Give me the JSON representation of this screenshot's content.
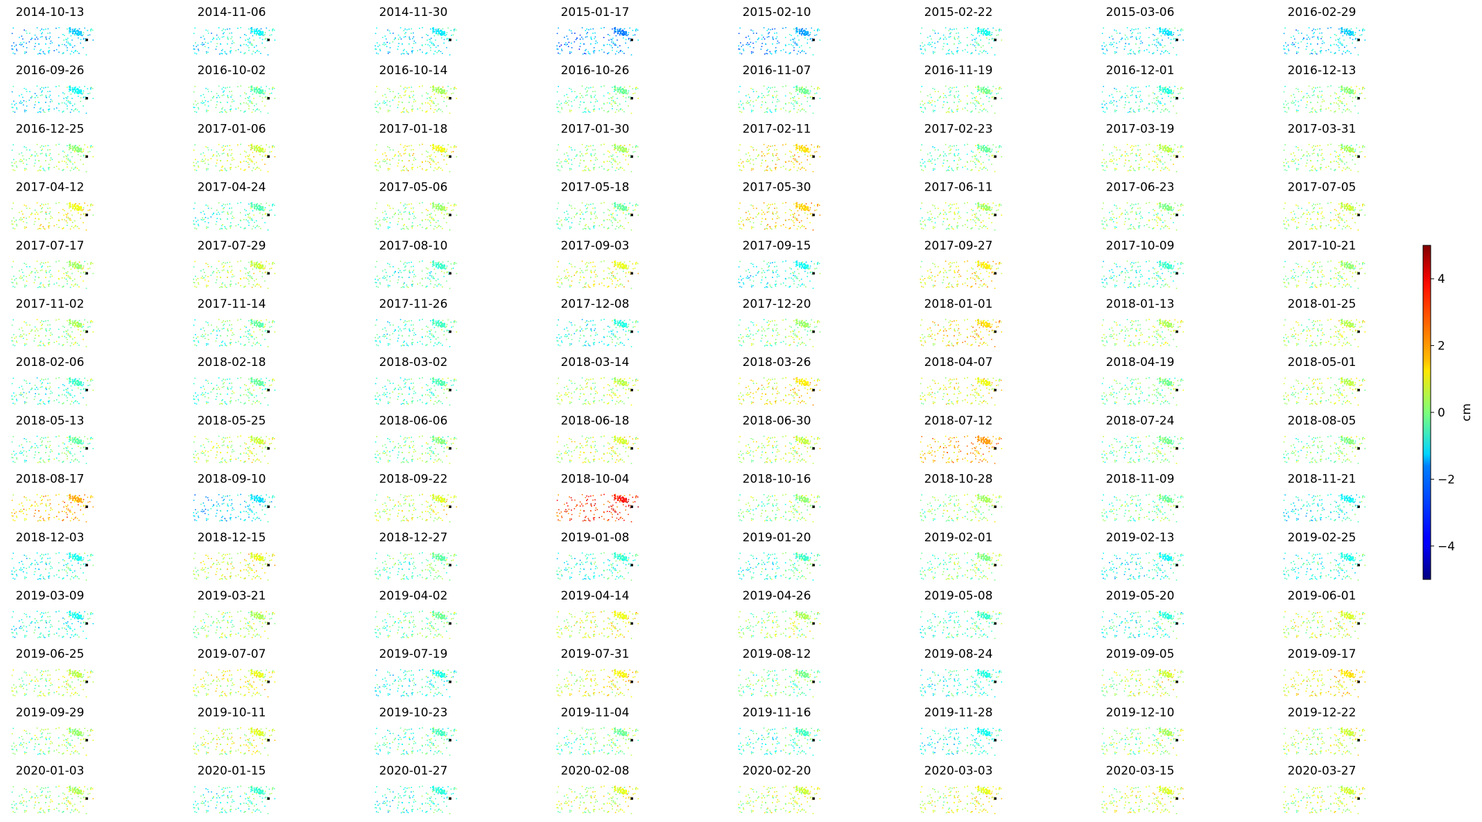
{
  "chart_data": {
    "type": "scatter",
    "layout": "small-multiples",
    "colormap": "jet",
    "panels": [
      {
        "title": "2014-10-13",
        "mean": -1.6
      },
      {
        "title": "2014-11-06",
        "mean": -1.2
      },
      {
        "title": "2014-11-30",
        "mean": -1.3
      },
      {
        "title": "2015-01-17",
        "mean": -2.2
      },
      {
        "title": "2015-02-10",
        "mean": -1.9
      },
      {
        "title": "2015-02-22",
        "mean": -1.0
      },
      {
        "title": "2015-03-06",
        "mean": -1.3
      },
      {
        "title": "2016-02-29",
        "mean": -1.5
      },
      {
        "title": "2016-09-26",
        "mean": -1.1
      },
      {
        "title": "2016-10-02",
        "mean": -0.4
      },
      {
        "title": "2016-10-14",
        "mean": 0.3
      },
      {
        "title": "2016-10-26",
        "mean": -0.2
      },
      {
        "title": "2016-11-07",
        "mean": -0.1
      },
      {
        "title": "2016-11-19",
        "mean": -0.1
      },
      {
        "title": "2016-12-01",
        "mean": -0.7
      },
      {
        "title": "2016-12-13",
        "mean": 0.0
      },
      {
        "title": "2016-12-25",
        "mean": 0.1
      },
      {
        "title": "2017-01-06",
        "mean": 0.6
      },
      {
        "title": "2017-01-18",
        "mean": 1.0
      },
      {
        "title": "2017-01-30",
        "mean": 0.3
      },
      {
        "title": "2017-02-11",
        "mean": 1.4
      },
      {
        "title": "2017-02-23",
        "mean": -0.2
      },
      {
        "title": "2017-03-19",
        "mean": 0.5
      },
      {
        "title": "2017-03-31",
        "mean": 0.3
      },
      {
        "title": "2017-04-12",
        "mean": 0.9
      },
      {
        "title": "2017-04-24",
        "mean": -0.4
      },
      {
        "title": "2017-05-06",
        "mean": 0.2
      },
      {
        "title": "2017-05-18",
        "mean": -0.2
      },
      {
        "title": "2017-05-30",
        "mean": 1.5
      },
      {
        "title": "2017-06-11",
        "mean": 0.3
      },
      {
        "title": "2017-06-23",
        "mean": 0.0
      },
      {
        "title": "2017-07-05",
        "mean": 0.6
      },
      {
        "title": "2017-07-17",
        "mean": 0.2
      },
      {
        "title": "2017-07-29",
        "mean": 0.6
      },
      {
        "title": "2017-08-10",
        "mean": -0.6
      },
      {
        "title": "2017-09-03",
        "mean": 0.9
      },
      {
        "title": "2017-09-15",
        "mean": -1.0
      },
      {
        "title": "2017-09-27",
        "mean": 1.2
      },
      {
        "title": "2017-10-09",
        "mean": -0.6
      },
      {
        "title": "2017-10-21",
        "mean": 0.2
      },
      {
        "title": "2017-11-02",
        "mean": 0.3
      },
      {
        "title": "2017-11-14",
        "mean": -0.3
      },
      {
        "title": "2017-11-26",
        "mean": -0.6
      },
      {
        "title": "2017-12-08",
        "mean": -0.8
      },
      {
        "title": "2017-12-20",
        "mean": 0.2
      },
      {
        "title": "2018-01-01",
        "mean": 1.4
      },
      {
        "title": "2018-01-13",
        "mean": 0.4
      },
      {
        "title": "2018-01-25",
        "mean": 0.5
      },
      {
        "title": "2018-02-06",
        "mean": -0.6
      },
      {
        "title": "2018-02-18",
        "mean": -0.2
      },
      {
        "title": "2018-03-02",
        "mean": -0.4
      },
      {
        "title": "2018-03-14",
        "mean": 0.5
      },
      {
        "title": "2018-03-26",
        "mean": 1.2
      },
      {
        "title": "2018-04-07",
        "mean": 1.0
      },
      {
        "title": "2018-04-19",
        "mean": -0.1
      },
      {
        "title": "2018-05-01",
        "mean": 0.5
      },
      {
        "title": "2018-05-13",
        "mean": -0.3
      },
      {
        "title": "2018-05-25",
        "mean": 0.6
      },
      {
        "title": "2018-06-06",
        "mean": 0.0
      },
      {
        "title": "2018-06-18",
        "mean": 0.7
      },
      {
        "title": "2018-06-30",
        "mean": 0.6
      },
      {
        "title": "2018-07-12",
        "mean": 2.0
      },
      {
        "title": "2018-07-24",
        "mean": -0.1
      },
      {
        "title": "2018-08-05",
        "mean": 0.0
      },
      {
        "title": "2018-08-17",
        "mean": 1.8
      },
      {
        "title": "2018-09-10",
        "mean": -1.4
      },
      {
        "title": "2018-09-22",
        "mean": 0.8
      },
      {
        "title": "2018-10-04",
        "mean": 3.2
      },
      {
        "title": "2018-10-16",
        "mean": 0.1
      },
      {
        "title": "2018-10-28",
        "mean": 0.3
      },
      {
        "title": "2018-11-09",
        "mean": -0.2
      },
      {
        "title": "2018-11-21",
        "mean": -1.1
      },
      {
        "title": "2018-12-03",
        "mean": -0.9
      },
      {
        "title": "2018-12-15",
        "mean": 0.9
      },
      {
        "title": "2018-12-27",
        "mean": -0.3
      },
      {
        "title": "2019-01-08",
        "mean": -0.7
      },
      {
        "title": "2019-01-20",
        "mean": -0.6
      },
      {
        "title": "2019-02-01",
        "mean": 0.0
      },
      {
        "title": "2019-02-13",
        "mean": -1.0
      },
      {
        "title": "2019-02-25",
        "mean": -0.9
      },
      {
        "title": "2019-03-09",
        "mean": -1.0
      },
      {
        "title": "2019-03-21",
        "mean": 0.3
      },
      {
        "title": "2019-04-02",
        "mean": -0.2
      },
      {
        "title": "2019-04-14",
        "mean": 0.9
      },
      {
        "title": "2019-04-26",
        "mean": 0.3
      },
      {
        "title": "2019-05-08",
        "mean": -0.6
      },
      {
        "title": "2019-05-20",
        "mean": -0.8
      },
      {
        "title": "2019-06-01",
        "mean": 0.8
      },
      {
        "title": "2019-06-25",
        "mean": 0.5
      },
      {
        "title": "2019-07-07",
        "mean": 0.9
      },
      {
        "title": "2019-07-19",
        "mean": -0.9
      },
      {
        "title": "2019-07-31",
        "mean": 1.1
      },
      {
        "title": "2019-08-12",
        "mean": -0.1
      },
      {
        "title": "2019-08-24",
        "mean": -0.8
      },
      {
        "title": "2019-09-05",
        "mean": 0.7
      },
      {
        "title": "2019-09-17",
        "mean": 1.3
      },
      {
        "title": "2019-09-29",
        "mean": 0.2
      },
      {
        "title": "2019-10-11",
        "mean": 0.8
      },
      {
        "title": "2019-10-23",
        "mean": -0.5
      },
      {
        "title": "2019-11-04",
        "mean": -0.2
      },
      {
        "title": "2019-11-16",
        "mean": -0.6
      },
      {
        "title": "2019-11-28",
        "mean": -1.0
      },
      {
        "title": "2019-12-10",
        "mean": 0.3
      },
      {
        "title": "2019-12-22",
        "mean": 0.6
      },
      {
        "title": "2020-01-03",
        "mean": 0.4
      },
      {
        "title": "2020-01-15",
        "mean": -0.6
      },
      {
        "title": "2020-01-27",
        "mean": -0.8
      },
      {
        "title": "2020-02-08",
        "mean": 0.8
      },
      {
        "title": "2020-02-20",
        "mean": 0.6
      },
      {
        "title": "2020-03-03",
        "mean": 0.9
      },
      {
        "title": "2020-03-15",
        "mean": 0.8
      },
      {
        "title": "2020-03-27",
        "mean": 0.7
      }
    ],
    "colorbar": {
      "label": "cm",
      "vmin": -5,
      "vmax": 5,
      "ticks": [
        "−4",
        "−2",
        "0",
        "2",
        "4"
      ],
      "tick_values": [
        -4,
        -2,
        0,
        2,
        4
      ]
    },
    "grid": false,
    "axes_visible": false
  }
}
